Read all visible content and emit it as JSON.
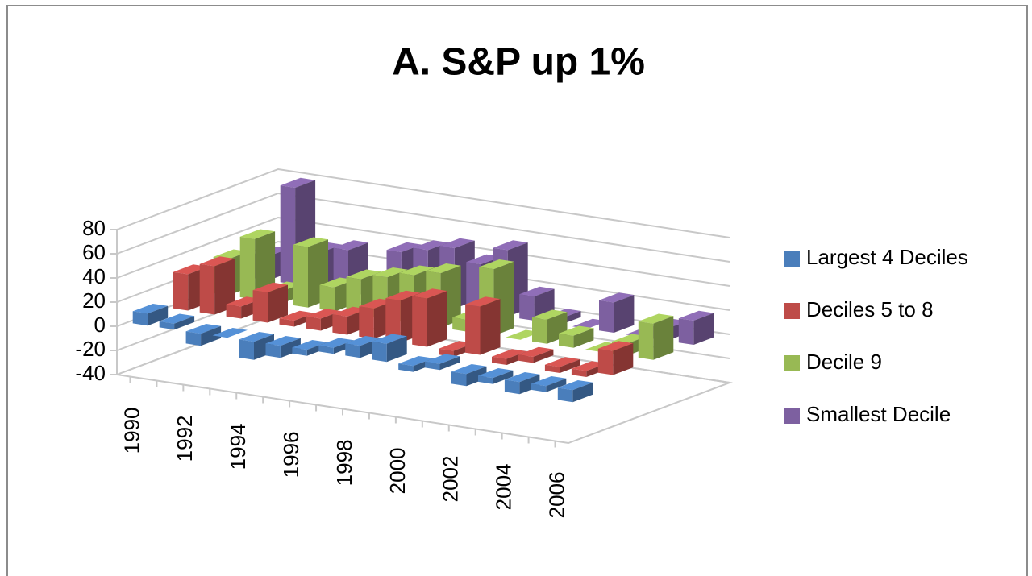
{
  "chart_data": {
    "type": "bar3d",
    "title": "A. S&P up 1%",
    "categories": [
      "1990",
      null,
      "1992",
      null,
      "1994",
      null,
      "1996",
      null,
      "1998",
      null,
      "2000",
      null,
      "2002",
      null,
      "2004",
      null,
      "2006"
    ],
    "series": [
      {
        "name": "Largest 4 Deciles",
        "color": "#4a7ebb",
        "values": [
          10,
          5,
          -10,
          0,
          -15,
          -10,
          -5,
          5,
          10,
          15,
          -5,
          5,
          -10,
          -5,
          -10,
          -5,
          -10
        ]
      },
      {
        "name": "Deciles 5 to 8",
        "color": "#be4b48",
        "values": [
          30,
          40,
          10,
          25,
          5,
          10,
          15,
          25,
          35,
          40,
          -5,
          40,
          -5,
          5,
          -5,
          -5,
          20
        ]
      },
      {
        "name": "Decile 9",
        "color": "#98b954",
        "values": [
          30,
          50,
          10,
          50,
          20,
          30,
          35,
          40,
          45,
          10,
          55,
          0,
          20,
          10,
          0,
          10,
          30
        ]
      },
      {
        "name": "Smallest Decile",
        "color": "#7d60a0",
        "values": [
          20,
          80,
          30,
          35,
          10,
          40,
          45,
          50,
          40,
          55,
          20,
          5,
          0,
          25,
          0,
          10,
          20
        ]
      }
    ],
    "ylim": [
      -40,
      80
    ],
    "yticks": [
      -40,
      -20,
      0,
      20,
      40,
      60,
      80
    ],
    "grid": true,
    "legend": "right"
  }
}
